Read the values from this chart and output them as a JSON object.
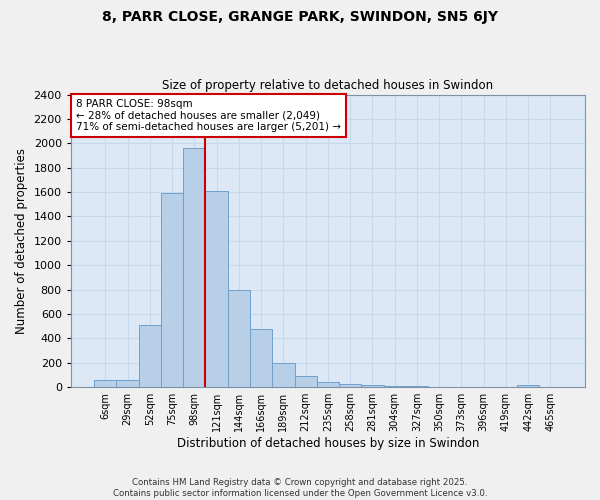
{
  "title": "8, PARR CLOSE, GRANGE PARK, SWINDON, SN5 6JY",
  "subtitle": "Size of property relative to detached houses in Swindon",
  "xlabel": "Distribution of detached houses by size in Swindon",
  "ylabel": "Number of detached properties",
  "categories": [
    "6sqm",
    "29sqm",
    "52sqm",
    "75sqm",
    "98sqm",
    "121sqm",
    "144sqm",
    "166sqm",
    "189sqm",
    "212sqm",
    "235sqm",
    "258sqm",
    "281sqm",
    "304sqm",
    "327sqm",
    "350sqm",
    "373sqm",
    "396sqm",
    "419sqm",
    "442sqm",
    "465sqm"
  ],
  "values": [
    60,
    60,
    510,
    1590,
    1960,
    1610,
    800,
    480,
    200,
    90,
    40,
    25,
    20,
    12,
    8,
    4,
    3,
    2,
    0,
    20,
    0
  ],
  "bar_color": "#b8cfe8",
  "bar_edge_color": "#6fa0cc",
  "vline_after_index": 4,
  "annotation_title": "8 PARR CLOSE: 98sqm",
  "annotation_line1": "← 28% of detached houses are smaller (2,049)",
  "annotation_line2": "71% of semi-detached houses are larger (5,201) →",
  "annotation_box_color": "#ffffff",
  "annotation_box_edge": "#cc0000",
  "vline_color": "#cc0000",
  "ylim": [
    0,
    2400
  ],
  "yticks": [
    0,
    200,
    400,
    600,
    800,
    1000,
    1200,
    1400,
    1600,
    1800,
    2000,
    2200,
    2400
  ],
  "grid_color": "#c8d8ec",
  "background_color": "#dce8f5",
  "fig_background": "#f0f0f0",
  "footer_line1": "Contains HM Land Registry data © Crown copyright and database right 2025.",
  "footer_line2": "Contains public sector information licensed under the Open Government Licence v3.0."
}
